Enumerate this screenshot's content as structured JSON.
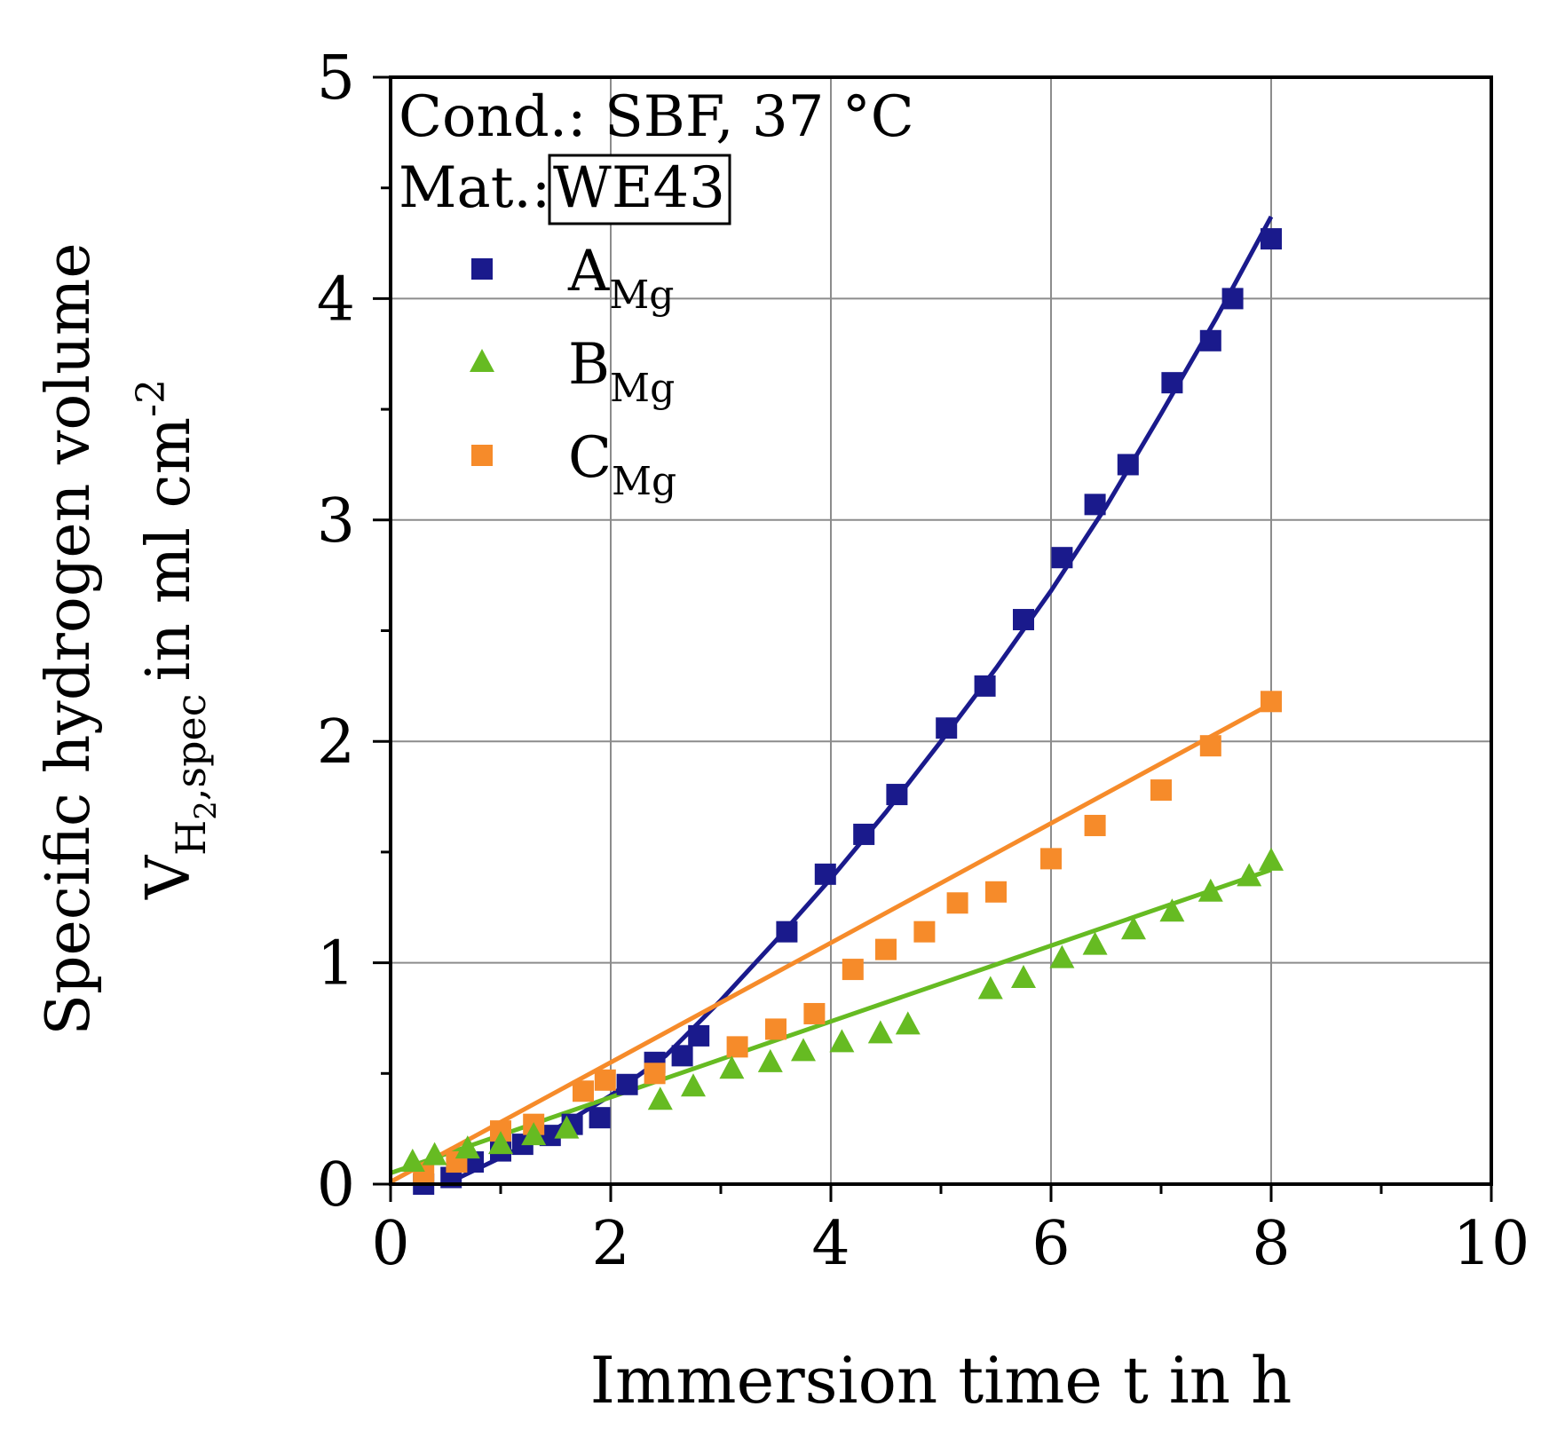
{
  "chart_data": {
    "type": "scatter",
    "title": "",
    "xlabel": "Immersion time t in h",
    "ylabel_line1": "Specific hydrogen volume",
    "ylabel_line2": {
      "main": "V",
      "sub": "H",
      "sub_sub": "2",
      "sub_rest": ",spec",
      "unit": "in ml cm",
      "unit_sup": "-2"
    },
    "xlim": [
      0,
      10
    ],
    "ylim": [
      0,
      5
    ],
    "x_ticks": [
      "0",
      "2",
      "4",
      "6",
      "8",
      "10"
    ],
    "y_ticks": [
      "0",
      "1",
      "2",
      "3",
      "4",
      "5"
    ],
    "grid": true,
    "annotations": {
      "cond": "Cond.: SBF, 37 °C",
      "mat_label": "Mat.:",
      "mat_value": "WE43"
    },
    "legend_position": "top-left",
    "series": [
      {
        "name_main": "A",
        "name_sub": "Mg",
        "color": "#1a1a8c",
        "marker": "square",
        "x": [
          0.3,
          0.55,
          0.75,
          1.0,
          1.2,
          1.45,
          1.65,
          1.9,
          2.15,
          2.4,
          2.65,
          2.8,
          3.6,
          3.95,
          4.3,
          4.6,
          5.05,
          5.4,
          5.75,
          6.1,
          6.4,
          6.7,
          7.1,
          7.45,
          7.65,
          8.0
        ],
        "y": [
          0.0,
          0.03,
          0.1,
          0.15,
          0.18,
          0.22,
          0.27,
          0.3,
          0.45,
          0.55,
          0.58,
          0.67,
          1.14,
          1.4,
          1.58,
          1.76,
          2.06,
          2.25,
          2.55,
          2.83,
          3.07,
          3.25,
          3.62,
          3.81,
          4.0,
          4.27
        ],
        "fit": [
          [
            0.5,
            0.0
          ],
          [
            1.0,
            0.12
          ],
          [
            1.5,
            0.25
          ],
          [
            2.0,
            0.4
          ],
          [
            2.5,
            0.58
          ],
          [
            3.0,
            0.83
          ],
          [
            3.5,
            1.1
          ],
          [
            4.0,
            1.38
          ],
          [
            4.5,
            1.68
          ],
          [
            5.0,
            2.0
          ],
          [
            5.5,
            2.33
          ],
          [
            6.0,
            2.68
          ],
          [
            6.5,
            3.06
          ],
          [
            7.0,
            3.48
          ],
          [
            7.5,
            3.91
          ],
          [
            8.0,
            4.37
          ]
        ]
      },
      {
        "name_main": "B",
        "name_sub": "Mg",
        "color": "#66bb22",
        "marker": "triangle",
        "x": [
          0.2,
          0.4,
          0.7,
          1.0,
          1.3,
          1.6,
          2.45,
          2.75,
          3.1,
          3.45,
          3.75,
          4.1,
          4.45,
          4.7,
          5.45,
          5.75,
          6.1,
          6.4,
          6.75,
          7.1,
          7.45,
          7.8,
          8.0
        ],
        "y": [
          0.1,
          0.13,
          0.16,
          0.18,
          0.22,
          0.25,
          0.38,
          0.44,
          0.52,
          0.55,
          0.6,
          0.64,
          0.68,
          0.72,
          0.88,
          0.93,
          1.02,
          1.08,
          1.15,
          1.23,
          1.32,
          1.39,
          1.46
        ]
      },
      {
        "name_main": "C",
        "name_sub": "Mg",
        "color": "#f68b2a",
        "marker": "square",
        "x": [
          0.3,
          0.6,
          1.0,
          1.3,
          1.75,
          1.95,
          2.4,
          3.15,
          3.5,
          3.85,
          4.2,
          4.5,
          4.85,
          5.15,
          5.5,
          6.0,
          6.4,
          7.0,
          7.45,
          8.0
        ],
        "y": [
          0.05,
          0.1,
          0.24,
          0.27,
          0.42,
          0.47,
          0.5,
          0.62,
          0.7,
          0.77,
          0.97,
          1.06,
          1.14,
          1.27,
          1.32,
          1.47,
          1.62,
          1.78,
          1.98,
          2.18
        ]
      }
    ],
    "fits_linear": [
      {
        "series": "B",
        "points": [
          [
            0,
            0.05
          ],
          [
            8,
            1.42
          ]
        ]
      },
      {
        "series": "C",
        "points": [
          [
            0,
            0.01
          ],
          [
            8,
            2.17
          ]
        ]
      }
    ]
  }
}
